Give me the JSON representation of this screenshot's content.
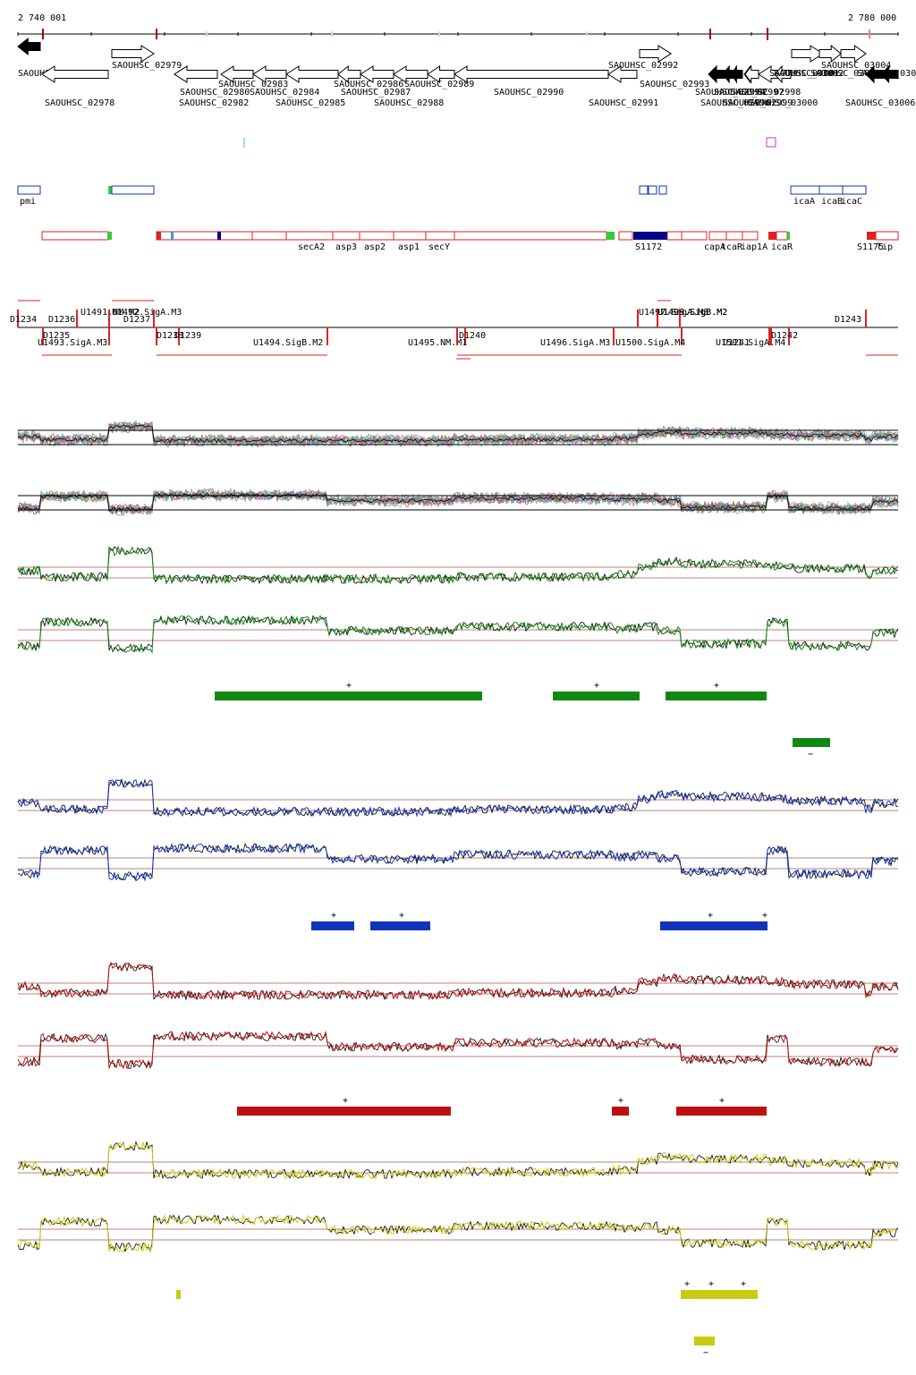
{
  "coords": {
    "start": "2 740 001",
    "end": "2 780 000"
  },
  "genes": [
    {
      "label": "SAOUHSC_02976",
      "dir": -1,
      "filled": true
    },
    {
      "label": "SAOUHSC_02978",
      "dir": -1,
      "filled": false
    },
    {
      "label": "SAOUHSC_02979",
      "dir": 1,
      "filled": false
    },
    {
      "label": "SAOUHSC_02980",
      "dir": -1,
      "filled": false
    },
    {
      "label": "SAOUHSC_02982",
      "dir": -1,
      "filled": false
    },
    {
      "label": "SAOUHSC_02983",
      "dir": -1,
      "filled": false
    },
    {
      "label": "SAOUHSC_02984",
      "dir": -1,
      "filled": false
    },
    {
      "label": "SAOUHSC_02985",
      "dir": -1,
      "filled": false
    },
    {
      "label": "SAOUHSC_02986",
      "dir": -1,
      "filled": false
    },
    {
      "label": "SAOUHSC_02987",
      "dir": -1,
      "filled": false
    },
    {
      "label": "SAOUHSC_02988",
      "dir": -1,
      "filled": false
    },
    {
      "label": "SAOUHSC_02989",
      "dir": -1,
      "filled": false
    },
    {
      "label": "SAOUHSC_02990",
      "dir": -1,
      "filled": false
    },
    {
      "label": "SAOUHSC_02991",
      "dir": -1,
      "filled": false
    },
    {
      "label": "SAOUHSC_02992",
      "dir": 1,
      "filled": false
    },
    {
      "label": "SAOUHSC_02993",
      "dir": 1,
      "filled": false
    },
    {
      "label": "SAOUHSC_02994",
      "dir": -1,
      "filled": true
    },
    {
      "label": "SAOUHSC_02996",
      "dir": -1,
      "filled": true
    },
    {
      "label": "SAOUHSC_02997",
      "dir": -1,
      "filled": true
    },
    {
      "label": "SAOUHSC_02998",
      "dir": -1,
      "filled": false
    },
    {
      "label": "SAOUHSC_02999",
      "dir": -1,
      "filled": false
    },
    {
      "label": "SAOUHSC_03000",
      "dir": -1,
      "filled": false
    },
    {
      "label": "SAOUHSC_03001",
      "dir": -1,
      "filled": false
    },
    {
      "label": "SAOUHSC_03002",
      "dir": 1,
      "filled": false
    },
    {
      "label": "SAOUHSC_03003",
      "dir": 1,
      "filled": false
    },
    {
      "label": "SAOUHSC_03004",
      "dir": 1,
      "filled": false
    },
    {
      "label": "SAOUHSC_03005",
      "dir": -1,
      "filled": true
    },
    {
      "label": "SAOUHSC_03006",
      "dir": -1,
      "filled": true
    }
  ],
  "annotations": [
    "pmi",
    "icaA",
    "icaB",
    "icaC"
  ],
  "operon_labels": [
    "secA2",
    "asp3",
    "asp2",
    "asp1",
    "secY",
    "S1172",
    "capA",
    "tcaR",
    "iap1A",
    "icaR",
    "S1175",
    "lip"
  ],
  "segment_labels": [
    "D1234",
    "D1235",
    "D1236",
    "U1491.NM.M2",
    "U1492.SigA.M3",
    "D1237",
    "U1493.SigA.M3",
    "D1238",
    "D1239",
    "U1494.SigB.M2",
    "U1495.NM.M1",
    "D1240",
    "U1496.SigA.M3",
    "U1497.SigA.M3",
    "U1498.SigB.M2",
    "U1499.SigB.M2",
    "U1500.SigA.M4",
    "U1501.SigA.M4",
    "D1241",
    "D1242",
    "D1243"
  ],
  "conditions": [
    {
      "name": "green",
      "color": "#118811",
      "bars": [
        {
          "sign": "+"
        },
        {
          "sign": "+"
        },
        {
          "sign": "+"
        },
        {
          "sign": "−"
        }
      ]
    },
    {
      "name": "blue",
      "color": "#1133bb",
      "bars": [
        {
          "sign": "+"
        },
        {
          "sign": "+"
        },
        {
          "sign": "+"
        },
        {
          "sign": "+"
        }
      ]
    },
    {
      "name": "red",
      "color": "#bb1111",
      "bars": [
        {
          "sign": "+"
        },
        {
          "sign": "+"
        },
        {
          "sign": "+"
        }
      ]
    },
    {
      "name": "yellow",
      "color": "#c8cc11",
      "bars": [
        {
          "sign": ""
        },
        {
          "sign": "+"
        },
        {
          "sign": "+"
        },
        {
          "sign": "+"
        },
        {
          "sign": "−"
        }
      ]
    }
  ]
}
